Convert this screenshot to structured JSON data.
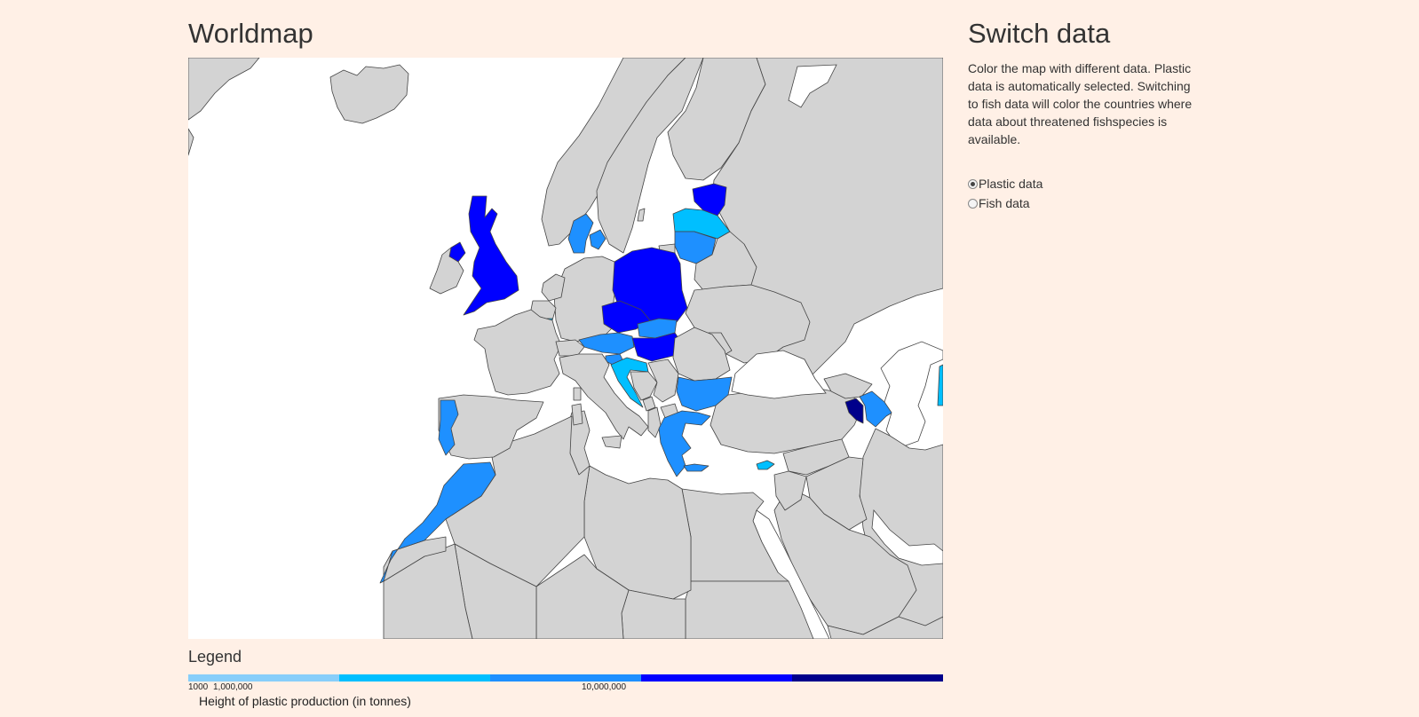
{
  "map_panel": {
    "title": "Worldmap",
    "colors": {
      "land_no_data": "#d3d3d3",
      "sea": "#ffffff",
      "scale": [
        "#87cefa",
        "#00bfff",
        "#1e90ff",
        "#0000ff",
        "#00008b"
      ]
    },
    "highlighted_countries": [
      {
        "name": "United Kingdom",
        "color": "#0000ff"
      },
      {
        "name": "Northern Ireland",
        "color": "#0000ff"
      },
      {
        "name": "Poland",
        "color": "#0000ff"
      },
      {
        "name": "Czech Republic",
        "color": "#0000ff"
      },
      {
        "name": "Hungary",
        "color": "#0000ff"
      },
      {
        "name": "Estonia",
        "color": "#0000ff"
      },
      {
        "name": "Latvia",
        "color": "#00bfff"
      },
      {
        "name": "Lithuania",
        "color": "#1e90ff"
      },
      {
        "name": "Denmark",
        "color": "#1e90ff"
      },
      {
        "name": "Austria",
        "color": "#1e90ff"
      },
      {
        "name": "Slovakia",
        "color": "#1e90ff"
      },
      {
        "name": "Slovenia",
        "color": "#1e90ff"
      },
      {
        "name": "Croatia",
        "color": "#00bfff"
      },
      {
        "name": "Bulgaria",
        "color": "#1e90ff"
      },
      {
        "name": "Greece",
        "color": "#1e90ff"
      },
      {
        "name": "Portugal",
        "color": "#1e90ff"
      },
      {
        "name": "Morocco",
        "color": "#1e90ff"
      },
      {
        "name": "Cyprus",
        "color": "#00bfff"
      },
      {
        "name": "Luxembourg",
        "color": "#00bfff"
      },
      {
        "name": "Armenia",
        "color": "#00008b"
      },
      {
        "name": "Azerbaijan",
        "color": "#1e90ff"
      },
      {
        "name": "Kazakhstan",
        "color": "#00bfff"
      }
    ]
  },
  "legend": {
    "title": "Legend",
    "ticks": [
      "1000",
      "1,000,000",
      "10,000,000"
    ],
    "caption": "Height of plastic production (in tonnes)"
  },
  "sidebar": {
    "title": "Switch data",
    "description": "Color the map with different data. Plastic data is automatically selected. Switching to fish data will color the countries where data about threatened fishspecies is available.",
    "options": [
      {
        "label": "Plastic data",
        "selected": true
      },
      {
        "label": "Fish data",
        "selected": false
      }
    ]
  }
}
